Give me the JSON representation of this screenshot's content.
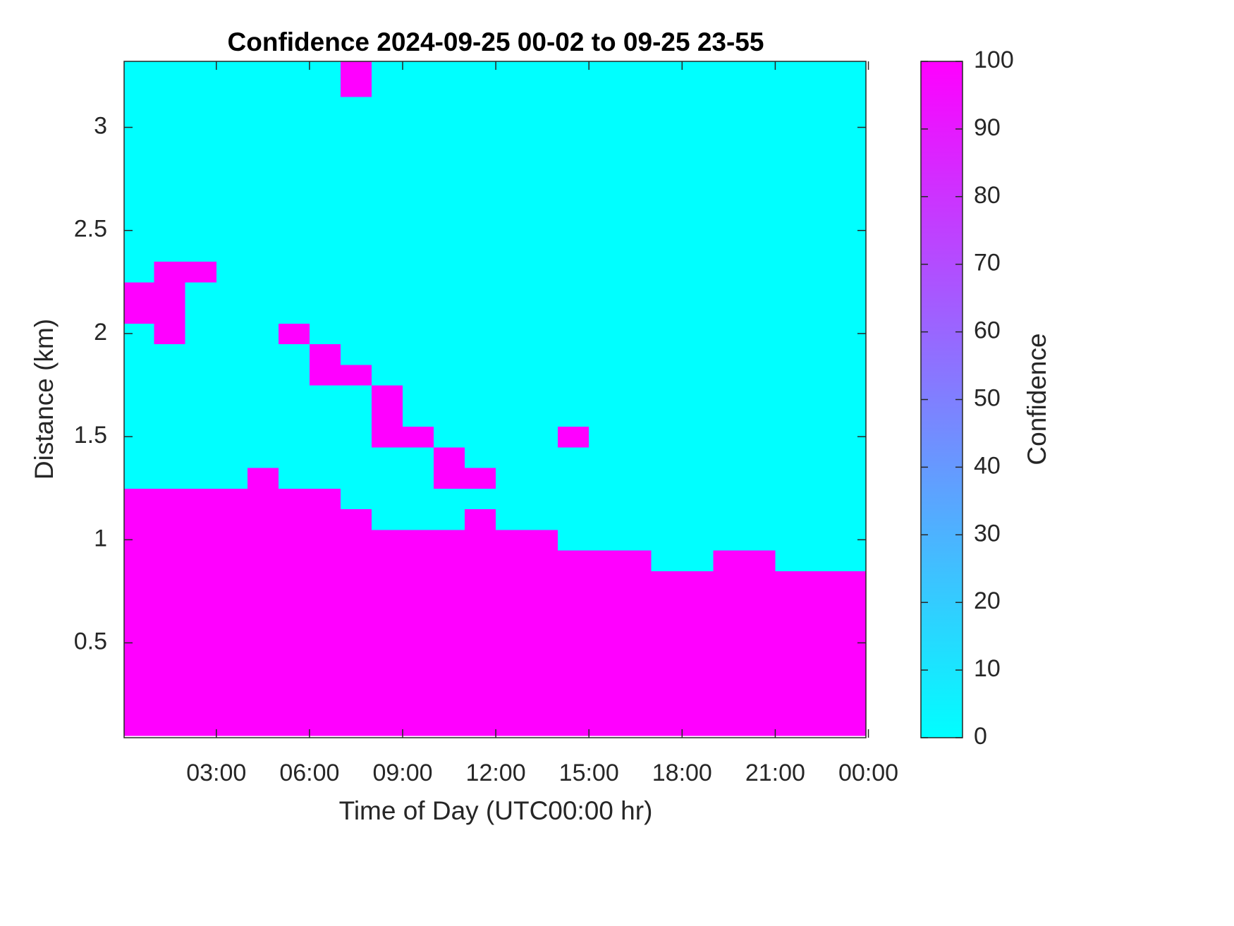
{
  "chart_data": {
    "type": "heatmap",
    "title": "Confidence 2024-09-25 00-02 to 09-25 23-55",
    "xlabel": "Time of Day (UTC00:00 hr)",
    "ylabel": "Distance (km)",
    "colorbar_label": "Confidence",
    "colormap": [
      "#00ffff",
      "#ff00ff"
    ],
    "x": [
      0.5,
      1.5,
      2.5,
      3.5,
      4.5,
      5.5,
      6.5,
      7.5,
      8.5,
      9.5,
      10.5,
      11.5,
      12.5,
      13.5,
      14.5,
      15.5,
      16.5,
      17.5,
      18.5,
      19.5,
      20.5,
      21.5,
      22.5,
      23.5
    ],
    "y": [
      0.1,
      0.2,
      0.3,
      0.4,
      0.5,
      0.6,
      0.7,
      0.8,
      0.9,
      1.0,
      1.1,
      1.2,
      1.3,
      1.4,
      1.5,
      1.6,
      1.7,
      1.8,
      1.9,
      2.0,
      2.1,
      2.2,
      2.3,
      2.4,
      2.5,
      2.6,
      2.7,
      2.8,
      2.9,
      3.0,
      3.1,
      3.2,
      3.3
    ],
    "z": [
      [
        100,
        100,
        100,
        100,
        100,
        100,
        100,
        100,
        100,
        100,
        100,
        100,
        100,
        100,
        100,
        100,
        100,
        100,
        100,
        100,
        100,
        100,
        100,
        100
      ],
      [
        100,
        100,
        100,
        100,
        100,
        100,
        100,
        100,
        100,
        100,
        100,
        100,
        100,
        100,
        100,
        100,
        100,
        100,
        100,
        100,
        100,
        100,
        100,
        100
      ],
      [
        100,
        100,
        100,
        100,
        100,
        100,
        100,
        100,
        100,
        100,
        100,
        100,
        100,
        100,
        100,
        100,
        100,
        100,
        100,
        100,
        100,
        100,
        100,
        100
      ],
      [
        100,
        100,
        100,
        100,
        100,
        100,
        100,
        100,
        100,
        100,
        100,
        100,
        100,
        100,
        100,
        100,
        100,
        100,
        100,
        100,
        100,
        100,
        100,
        100
      ],
      [
        100,
        100,
        100,
        100,
        100,
        100,
        100,
        100,
        100,
        100,
        100,
        100,
        100,
        100,
        100,
        100,
        100,
        100,
        100,
        100,
        100,
        100,
        100,
        100
      ],
      [
        100,
        100,
        100,
        100,
        100,
        100,
        100,
        100,
        100,
        100,
        100,
        100,
        100,
        100,
        100,
        100,
        100,
        100,
        100,
        100,
        100,
        100,
        100,
        100
      ],
      [
        100,
        100,
        100,
        100,
        100,
        100,
        100,
        100,
        100,
        100,
        100,
        100,
        100,
        100,
        100,
        100,
        100,
        100,
        100,
        100,
        100,
        100,
        100,
        100
      ],
      [
        100,
        100,
        100,
        100,
        100,
        100,
        100,
        100,
        100,
        100,
        100,
        100,
        100,
        100,
        100,
        100,
        100,
        100,
        100,
        100,
        100,
        100,
        100,
        100
      ],
      [
        100,
        100,
        100,
        100,
        100,
        100,
        100,
        100,
        100,
        100,
        100,
        100,
        100,
        100,
        100,
        100,
        100,
        0,
        0,
        100,
        100,
        0,
        0,
        0
      ],
      [
        100,
        100,
        100,
        100,
        100,
        100,
        100,
        100,
        100,
        100,
        100,
        100,
        100,
        100,
        0,
        0,
        0,
        0,
        0,
        0,
        0,
        0,
        0,
        0
      ],
      [
        100,
        100,
        100,
        100,
        100,
        100,
        100,
        100,
        0,
        0,
        0,
        100,
        0,
        0,
        0,
        0,
        0,
        0,
        0,
        0,
        0,
        0,
        0,
        0
      ],
      [
        100,
        100,
        100,
        100,
        100,
        100,
        100,
        0,
        0,
        0,
        0,
        0,
        0,
        0,
        0,
        0,
        0,
        0,
        0,
        0,
        0,
        0,
        0,
        0
      ],
      [
        0,
        0,
        0,
        0,
        100,
        0,
        0,
        0,
        0,
        0,
        100,
        100,
        0,
        0,
        0,
        0,
        0,
        0,
        0,
        0,
        0,
        0,
        0,
        0
      ],
      [
        0,
        0,
        0,
        0,
        0,
        0,
        0,
        0,
        0,
        0,
        100,
        0,
        0,
        0,
        0,
        0,
        0,
        0,
        0,
        0,
        0,
        0,
        0,
        0
      ],
      [
        0,
        0,
        0,
        0,
        0,
        0,
        0,
        0,
        100,
        100,
        0,
        0,
        0,
        0,
        100,
        0,
        0,
        0,
        0,
        0,
        0,
        0,
        0,
        0
      ],
      [
        0,
        0,
        0,
        0,
        0,
        0,
        0,
        0,
        100,
        0,
        0,
        0,
        0,
        0,
        0,
        0,
        0,
        0,
        0,
        0,
        0,
        0,
        0,
        0
      ],
      [
        0,
        0,
        0,
        0,
        0,
        0,
        0,
        0,
        100,
        0,
        0,
        0,
        0,
        0,
        0,
        0,
        0,
        0,
        0,
        0,
        0,
        0,
        0,
        0
      ],
      [
        0,
        0,
        0,
        0,
        0,
        0,
        100,
        100,
        0,
        0,
        0,
        0,
        0,
        0,
        0,
        0,
        0,
        0,
        0,
        0,
        0,
        0,
        0,
        0
      ],
      [
        0,
        0,
        0,
        0,
        0,
        0,
        100,
        0,
        0,
        0,
        0,
        0,
        0,
        0,
        0,
        0,
        0,
        0,
        0,
        0,
        0,
        0,
        0,
        0
      ],
      [
        0,
        100,
        0,
        0,
        0,
        100,
        0,
        0,
        0,
        0,
        0,
        0,
        0,
        0,
        0,
        0,
        0,
        0,
        0,
        0,
        0,
        0,
        0,
        0
      ],
      [
        100,
        100,
        0,
        0,
        0,
        0,
        0,
        0,
        0,
        0,
        0,
        0,
        0,
        0,
        0,
        0,
        0,
        0,
        0,
        0,
        0,
        0,
        0,
        0
      ],
      [
        100,
        100,
        0,
        0,
        0,
        0,
        0,
        0,
        0,
        0,
        0,
        0,
        0,
        0,
        0,
        0,
        0,
        0,
        0,
        0,
        0,
        0,
        0,
        0
      ],
      [
        0,
        100,
        100,
        0,
        0,
        0,
        0,
        0,
        0,
        0,
        0,
        0,
        0,
        0,
        0,
        0,
        0,
        0,
        0,
        0,
        0,
        0,
        0,
        0
      ],
      [
        0,
        0,
        0,
        0,
        0,
        0,
        0,
        0,
        0,
        0,
        0,
        0,
        0,
        0,
        0,
        0,
        0,
        0,
        0,
        0,
        0,
        0,
        0,
        0
      ],
      [
        0,
        0,
        0,
        0,
        0,
        0,
        0,
        0,
        0,
        0,
        0,
        0,
        0,
        0,
        0,
        0,
        0,
        0,
        0,
        0,
        0,
        0,
        0,
        0
      ],
      [
        0,
        0,
        0,
        0,
        0,
        0,
        0,
        0,
        0,
        0,
        0,
        0,
        0,
        0,
        0,
        0,
        0,
        0,
        0,
        0,
        0,
        0,
        0,
        0
      ],
      [
        0,
        0,
        0,
        0,
        0,
        0,
        0,
        0,
        0,
        0,
        0,
        0,
        0,
        0,
        0,
        0,
        0,
        0,
        0,
        0,
        0,
        0,
        0,
        0
      ],
      [
        0,
        0,
        0,
        0,
        0,
        0,
        0,
        0,
        0,
        0,
        0,
        0,
        0,
        0,
        0,
        0,
        0,
        0,
        0,
        0,
        0,
        0,
        0,
        0
      ],
      [
        0,
        0,
        0,
        0,
        0,
        0,
        0,
        0,
        0,
        0,
        0,
        0,
        0,
        0,
        0,
        0,
        0,
        0,
        0,
        0,
        0,
        0,
        0,
        0
      ],
      [
        0,
        0,
        0,
        0,
        0,
        0,
        0,
        0,
        0,
        0,
        0,
        0,
        0,
        0,
        0,
        0,
        0,
        0,
        0,
        0,
        0,
        0,
        0,
        0
      ],
      [
        0,
        0,
        0,
        0,
        0,
        0,
        0,
        0,
        0,
        0,
        0,
        0,
        0,
        0,
        0,
        0,
        0,
        0,
        0,
        0,
        0,
        0,
        0,
        0
      ],
      [
        0,
        0,
        0,
        0,
        0,
        0,
        0,
        100,
        0,
        0,
        0,
        0,
        0,
        0,
        0,
        0,
        0,
        0,
        0,
        0,
        0,
        0,
        0,
        0
      ],
      [
        0,
        0,
        0,
        0,
        0,
        0,
        0,
        100,
        0,
        0,
        0,
        0,
        0,
        0,
        0,
        0,
        0,
        0,
        0,
        0,
        0,
        0,
        0,
        0
      ]
    ],
    "xlim": [
      0.03,
      23.92
    ],
    "ylim": [
      0.04,
      3.32
    ],
    "xticks": [
      {
        "value": 3,
        "label": "03:00"
      },
      {
        "value": 6,
        "label": "06:00"
      },
      {
        "value": 9,
        "label": "09:00"
      },
      {
        "value": 12,
        "label": "12:00"
      },
      {
        "value": 15,
        "label": "15:00"
      },
      {
        "value": 18,
        "label": "18:00"
      },
      {
        "value": 21,
        "label": "21:00"
      },
      {
        "value": 24,
        "label": "00:00"
      }
    ],
    "yticks": [
      0.5,
      1,
      1.5,
      2,
      2.5,
      3
    ],
    "clim": [
      0,
      100
    ],
    "cticks": [
      0,
      10,
      20,
      30,
      40,
      50,
      60,
      70,
      80,
      90,
      100
    ]
  }
}
